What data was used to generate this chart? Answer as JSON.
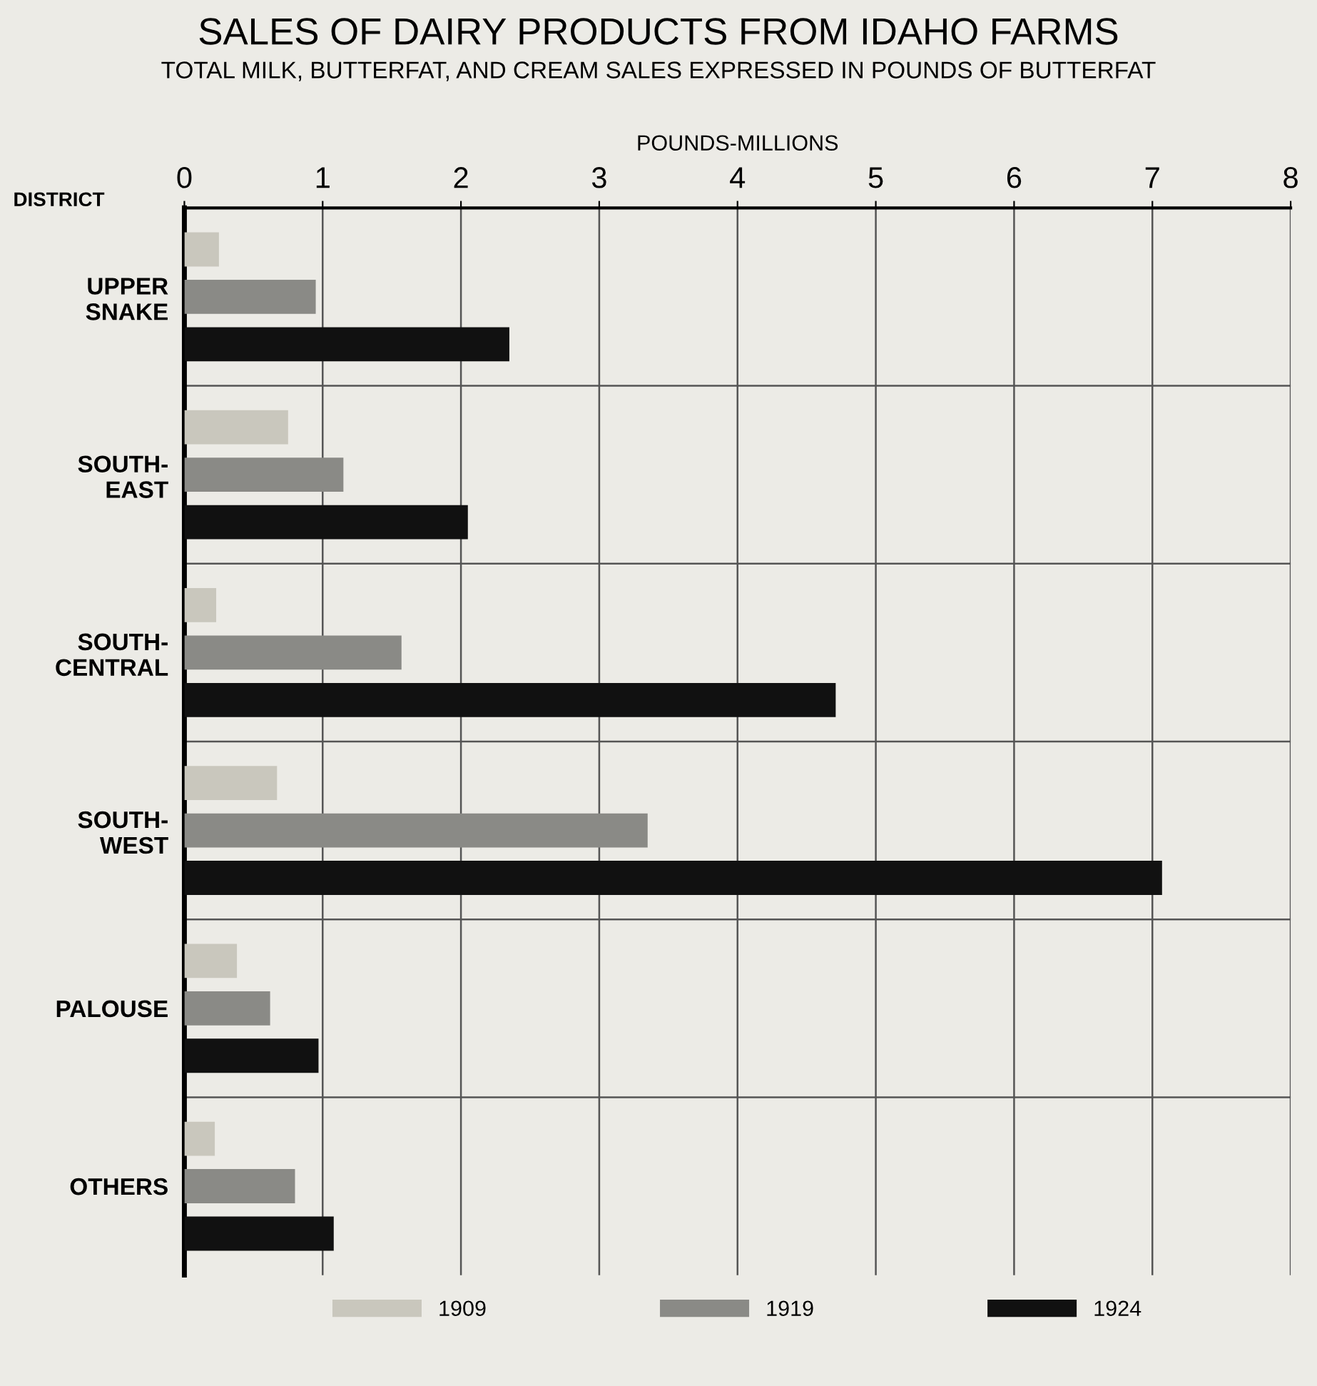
{
  "chart_data": {
    "type": "bar",
    "orientation": "horizontal",
    "title": "SALES OF DAIRY PRODUCTS FROM IDAHO FARMS",
    "subtitle": "TOTAL MILK, BUTTERFAT, AND CREAM SALES EXPRESSED IN POUNDS OF BUTTERFAT",
    "xlabel": "POUNDS-MILLIONS",
    "ylabel": "DISTRICT",
    "categories": [
      "UPPER\nSNAKE",
      "SOUTH-\nEAST",
      "SOUTH-\nCENTRAL",
      "SOUTH-\nWEST",
      "PALOUSE",
      "OTHERS"
    ],
    "series": [
      {
        "name": "1909",
        "color": "#c9c7bd",
        "values": [
          0.25,
          0.75,
          0.23,
          0.67,
          0.38,
          0.22
        ]
      },
      {
        "name": "1919",
        "color": "#8a8a86",
        "values": [
          0.95,
          1.15,
          1.57,
          3.35,
          0.62,
          0.8
        ]
      },
      {
        "name": "1924",
        "color": "#111111",
        "values": [
          2.35,
          2.05,
          4.71,
          7.07,
          0.97,
          1.08
        ]
      }
    ],
    "xlim": [
      0,
      8
    ],
    "xticks": [
      0,
      1,
      2,
      3,
      4,
      5,
      6,
      7,
      8
    ],
    "grid": true,
    "legend": "bottom"
  }
}
